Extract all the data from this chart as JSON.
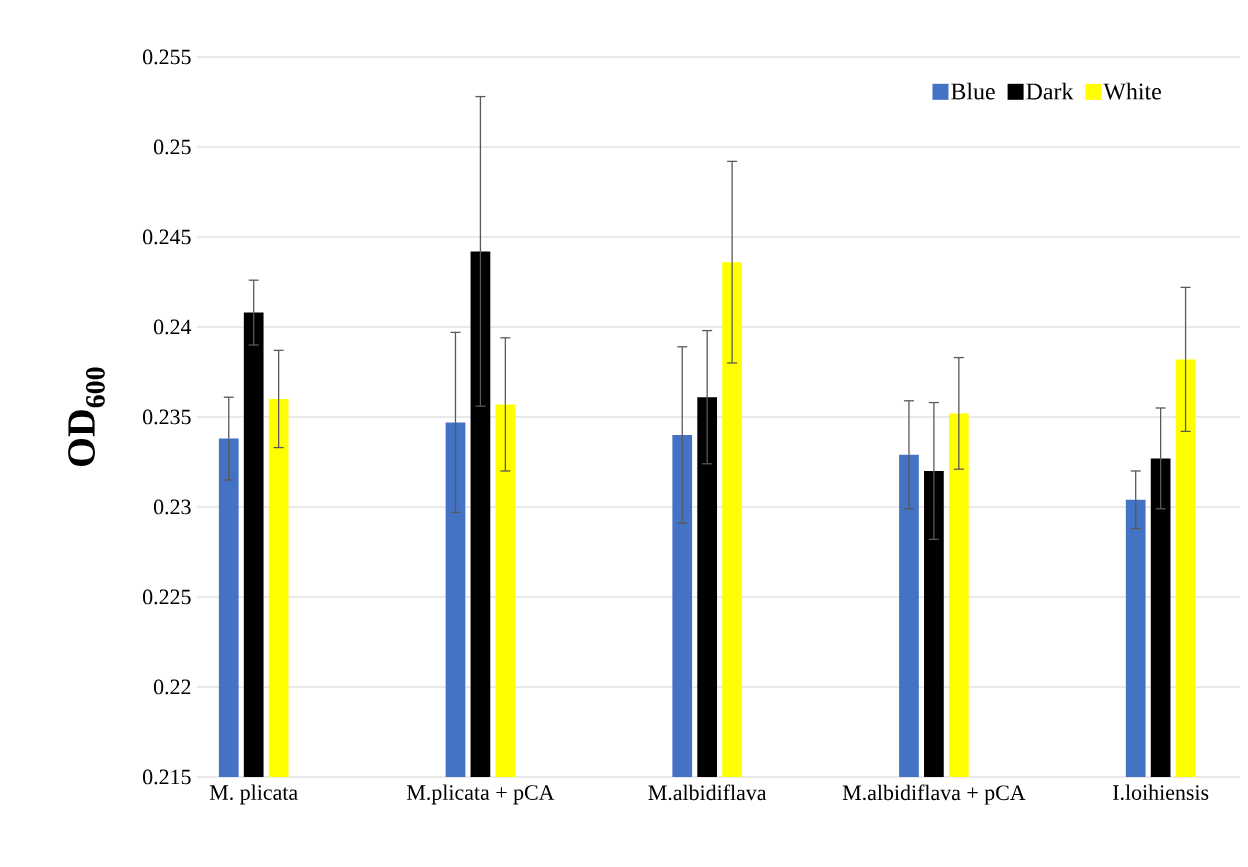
{
  "chart_data": {
    "type": "bar",
    "ylabel": "OD$_{600}$",
    "categories": [
      "M. plicata",
      "M.plicata + pCA",
      "M.albidiflava",
      "M.albidiflava + pCA",
      "I.loihiensis"
    ],
    "series": [
      {
        "name": "Blue",
        "color": "#4472c4",
        "values": [
          0.2338,
          0.2347,
          0.234,
          0.2329,
          0.2304
        ],
        "errors": [
          0.0023,
          0.005,
          0.0049,
          0.003,
          0.0016
        ]
      },
      {
        "name": "Dark",
        "color": "#000000",
        "values": [
          0.2408,
          0.2442,
          0.2361,
          0.232,
          0.2327
        ],
        "errors": [
          0.0018,
          0.0086,
          0.0037,
          0.0038,
          0.0028
        ]
      },
      {
        "name": "White",
        "color": "#ffff00",
        "values": [
          0.236,
          0.2357,
          0.2436,
          0.2352,
          0.2382
        ],
        "errors": [
          0.0027,
          0.0037,
          0.0056,
          0.0031,
          0.004
        ]
      }
    ],
    "ylim": [
      0.215,
      0.255
    ],
    "yticks": [
      0.215,
      0.22,
      0.225,
      0.23,
      0.235,
      0.24,
      0.245,
      0.25,
      0.255
    ],
    "grid": "y",
    "legend": "top right"
  }
}
